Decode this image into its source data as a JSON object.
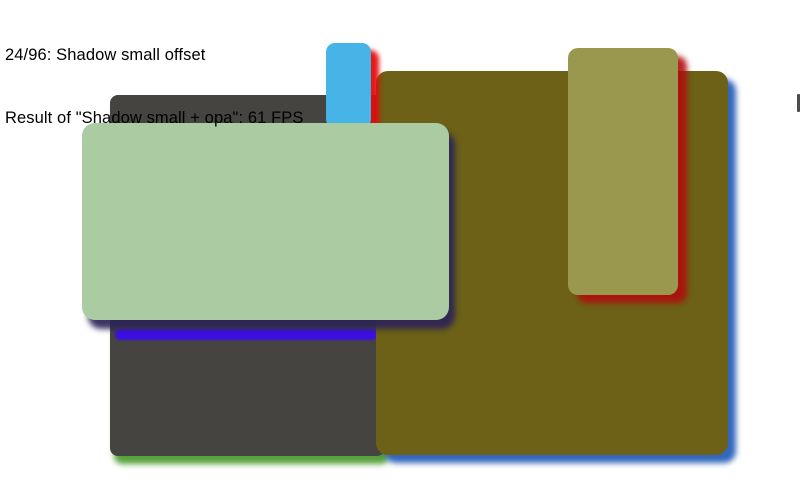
{
  "hud": {
    "line1": "24/96: Shadow small offset",
    "line2": "Result of \"Shadow small + opa\": 61 FPS",
    "text_color": "#000000"
  },
  "scene": {
    "background": "#ffffff",
    "rects": [
      {
        "name": "dark-gray-card",
        "fill": "#454440",
        "shadow": "rgba(78,156,50,0.95)"
      },
      {
        "name": "blue-shadow-stripe",
        "fill": "#3C0EE6",
        "shadow": "none"
      },
      {
        "name": "olive-card",
        "fill": "#6C6116",
        "shadow": "rgba(40,95,185,0.95)"
      },
      {
        "name": "sky-blue-card",
        "fill": "#47B4E8",
        "shadow": "rgba(230,12,12,0.95)"
      },
      {
        "name": "khaki-card",
        "fill": "#99984E",
        "shadow": "rgba(176,13,13,0.9)"
      },
      {
        "name": "sage-green-card",
        "fill": "#ABCBA3",
        "shadow": "rgba(45,35,88,0.92)"
      },
      {
        "name": "right-edge-fragment",
        "fill": "#4C4C4A",
        "shadow": "none"
      }
    ]
  }
}
